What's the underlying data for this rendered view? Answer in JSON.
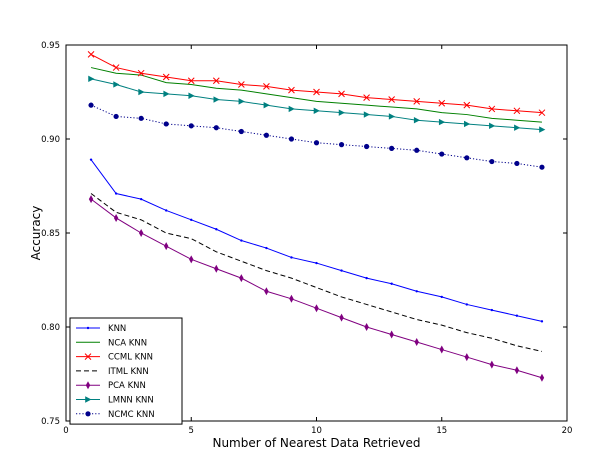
{
  "chart_data": {
    "type": "line",
    "title": "",
    "xlabel": "Number of Nearest Data Retrieved",
    "ylabel": "Accuracy",
    "xlim": [
      0,
      20
    ],
    "ylim": [
      0.75,
      0.95
    ],
    "xticks": [
      0,
      5,
      10,
      15,
      20
    ],
    "xtick_labels": [
      "0",
      "5",
      "10",
      "15",
      "20"
    ],
    "yticks": [
      0.75,
      0.8,
      0.85,
      0.9,
      0.95
    ],
    "ytick_labels": [
      "0.75",
      "0.80",
      "0.85",
      "0.90",
      "0.95"
    ],
    "grid": false,
    "legend_position": "lower-left",
    "x": [
      1,
      2,
      3,
      4,
      5,
      6,
      7,
      8,
      9,
      10,
      11,
      12,
      13,
      14,
      15,
      16,
      17,
      18,
      19
    ],
    "series": [
      {
        "name": "KNN",
        "color": "#0000ff",
        "line_style": "solid",
        "marker": "dot",
        "values": [
          0.889,
          0.871,
          0.868,
          0.862,
          0.857,
          0.852,
          0.846,
          0.842,
          0.837,
          0.834,
          0.83,
          0.826,
          0.823,
          0.819,
          0.816,
          0.812,
          0.809,
          0.806,
          0.803
        ]
      },
      {
        "name": "NCA KNN",
        "color": "#008000",
        "line_style": "solid",
        "marker": "none",
        "values": [
          0.938,
          0.935,
          0.934,
          0.93,
          0.929,
          0.927,
          0.926,
          0.924,
          0.922,
          0.92,
          0.919,
          0.918,
          0.917,
          0.916,
          0.914,
          0.913,
          0.911,
          0.91,
          0.909
        ]
      },
      {
        "name": "CCML KNN",
        "color": "#ff0000",
        "line_style": "solid",
        "marker": "x",
        "values": [
          0.945,
          0.938,
          0.935,
          0.933,
          0.931,
          0.931,
          0.929,
          0.928,
          0.926,
          0.925,
          0.924,
          0.922,
          0.921,
          0.92,
          0.919,
          0.918,
          0.916,
          0.915,
          0.914
        ]
      },
      {
        "name": "ITML KNN",
        "color": "#000000",
        "line_style": "dashed",
        "marker": "none",
        "values": [
          0.871,
          0.861,
          0.857,
          0.85,
          0.847,
          0.84,
          0.835,
          0.83,
          0.826,
          0.821,
          0.816,
          0.812,
          0.808,
          0.804,
          0.801,
          0.797,
          0.794,
          0.79,
          0.787
        ]
      },
      {
        "name": "PCA KNN",
        "color": "#800080",
        "line_style": "solid",
        "marker": "diamond",
        "values": [
          0.868,
          0.858,
          0.85,
          0.843,
          0.836,
          0.831,
          0.826,
          0.819,
          0.815,
          0.81,
          0.805,
          0.8,
          0.796,
          0.792,
          0.788,
          0.784,
          0.78,
          0.777,
          0.773
        ]
      },
      {
        "name": "LMNN KNN",
        "color": "#008080",
        "line_style": "solid",
        "marker": "triangle-right",
        "values": [
          0.932,
          0.929,
          0.925,
          0.924,
          0.923,
          0.921,
          0.92,
          0.918,
          0.916,
          0.915,
          0.914,
          0.913,
          0.912,
          0.91,
          0.909,
          0.908,
          0.907,
          0.906,
          0.905
        ]
      },
      {
        "name": "NCMC KNN",
        "color": "#00008b",
        "line_style": "dotted",
        "marker": "circle",
        "values": [
          0.918,
          0.912,
          0.911,
          0.908,
          0.907,
          0.906,
          0.904,
          0.902,
          0.9,
          0.898,
          0.897,
          0.896,
          0.895,
          0.894,
          0.892,
          0.89,
          0.888,
          0.887,
          0.885
        ]
      }
    ]
  }
}
